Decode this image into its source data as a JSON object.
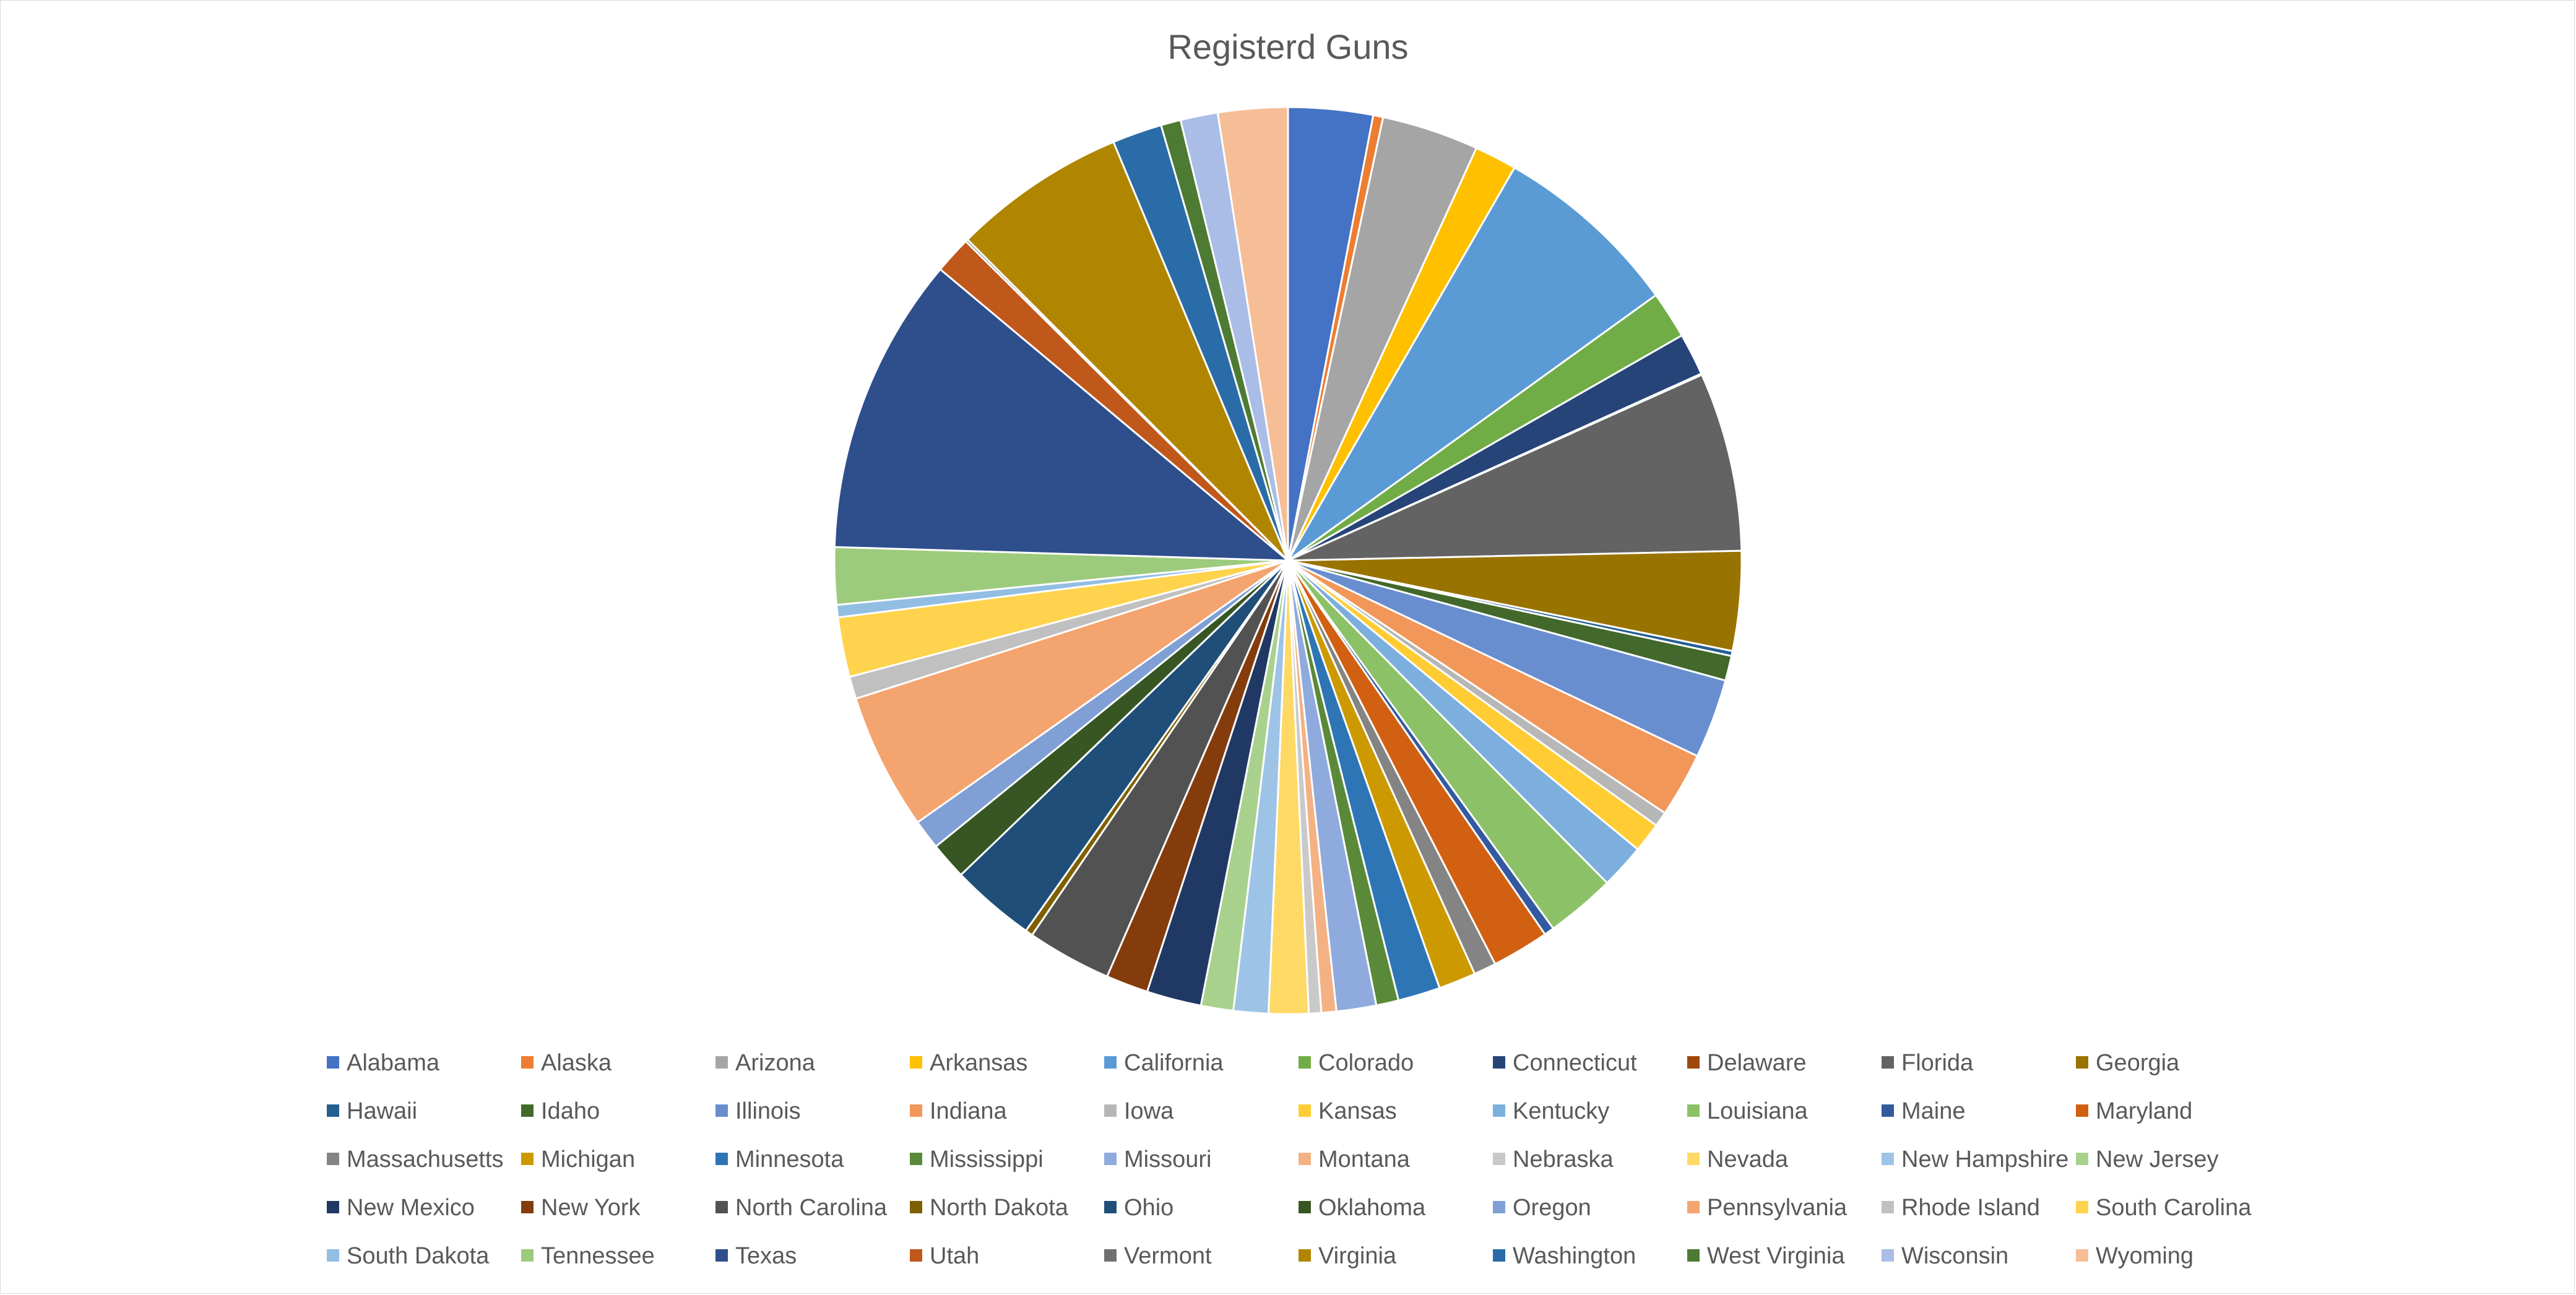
{
  "chart_data": {
    "type": "pie",
    "title": "Registerd Guns",
    "legend_position": "bottom",
    "slices": [
      {
        "name": "Alabama",
        "value": 3.4,
        "color": "#4472C4"
      },
      {
        "name": "Alaska",
        "value": 0.4,
        "color": "#ED7D31"
      },
      {
        "name": "Arizona",
        "value": 3.9,
        "color": "#A5A5A5"
      },
      {
        "name": "Arkansas",
        "value": 1.7,
        "color": "#FFC000"
      },
      {
        "name": "California",
        "value": 7.6,
        "color": "#5B9BD5"
      },
      {
        "name": "Colorado",
        "value": 1.9,
        "color": "#70AD47"
      },
      {
        "name": "Connecticut",
        "value": 1.7,
        "color": "#264478"
      },
      {
        "name": "Delaware",
        "value": 0.05,
        "color": "#9E480E"
      },
      {
        "name": "Florida",
        "value": 7.2,
        "color": "#636363"
      },
      {
        "name": "Georgia",
        "value": 4.0,
        "color": "#997300"
      },
      {
        "name": "Hawaii",
        "value": 0.2,
        "color": "#255E91"
      },
      {
        "name": "Idaho",
        "value": 1.0,
        "color": "#43682B"
      },
      {
        "name": "Illinois",
        "value": 3.2,
        "color": "#698ED0"
      },
      {
        "name": "Indiana",
        "value": 2.6,
        "color": "#F1975A"
      },
      {
        "name": "Iowa",
        "value": 0.6,
        "color": "#B7B7B7"
      },
      {
        "name": "Kansas",
        "value": 1.2,
        "color": "#FFCD33"
      },
      {
        "name": "Kentucky",
        "value": 1.8,
        "color": "#7CAFDD"
      },
      {
        "name": "Louisiana",
        "value": 2.8,
        "color": "#8CC168"
      },
      {
        "name": "Maine",
        "value": 0.4,
        "color": "#335AA1"
      },
      {
        "name": "Maryland",
        "value": 2.3,
        "color": "#D26012"
      },
      {
        "name": "Massachusetts",
        "value": 0.9,
        "color": "#848484"
      },
      {
        "name": "Michigan",
        "value": 1.5,
        "color": "#CC9A00"
      },
      {
        "name": "Minnesota",
        "value": 1.7,
        "color": "#2E75B6"
      },
      {
        "name": "Mississippi",
        "value": 0.9,
        "color": "#5A8A39"
      },
      {
        "name": "Missouri",
        "value": 1.6,
        "color": "#8FAADC"
      },
      {
        "name": "Montana",
        "value": 0.6,
        "color": "#F4B183"
      },
      {
        "name": "Nebraska",
        "value": 0.5,
        "color": "#C9C9C9"
      },
      {
        "name": "Nevada",
        "value": 1.6,
        "color": "#FFD966"
      },
      {
        "name": "New Hampshire",
        "value": 1.4,
        "color": "#9DC3E6"
      },
      {
        "name": "New Jersey",
        "value": 1.3,
        "color": "#A9D18E"
      },
      {
        "name": "New Mexico",
        "value": 2.2,
        "color": "#203864"
      },
      {
        "name": "New York",
        "value": 1.7,
        "color": "#843C0C"
      },
      {
        "name": "North Carolina",
        "value": 3.4,
        "color": "#525252"
      },
      {
        "name": "North Dakota",
        "value": 0.3,
        "color": "#7F6000"
      },
      {
        "name": "Ohio",
        "value": 3.4,
        "color": "#1F4E79"
      },
      {
        "name": "Oklahoma",
        "value": 1.5,
        "color": "#375623"
      },
      {
        "name": "Oregon",
        "value": 1.2,
        "color": "#7F9FD5"
      },
      {
        "name": "Pennsylvania",
        "value": 5.5,
        "color": "#F4A46F"
      },
      {
        "name": "Rhode Island",
        "value": 0.9,
        "color": "#C0C0C0"
      },
      {
        "name": "South Carolina",
        "value": 2.4,
        "color": "#FFD34D"
      },
      {
        "name": "South Dakota",
        "value": 0.5,
        "color": "#93BEE4"
      },
      {
        "name": "Tennessee",
        "value": 2.3,
        "color": "#9DCB7D"
      },
      {
        "name": "Texas",
        "value": 12.0,
        "color": "#2E4F8C"
      },
      {
        "name": "Utah",
        "value": 1.5,
        "color": "#C0581B"
      },
      {
        "name": "Vermont",
        "value": 0.1,
        "color": "#707070"
      },
      {
        "name": "Virginia",
        "value": 7.0,
        "color": "#B08600"
      },
      {
        "name": "Washington",
        "value": 2.0,
        "color": "#2A6CA8"
      },
      {
        "name": "West Virginia",
        "value": 0.8,
        "color": "#4E7B33"
      },
      {
        "name": "Wisconsin",
        "value": 1.5,
        "color": "#A9BDE6"
      },
      {
        "name": "Wyoming",
        "value": 2.8,
        "color": "#F6BE97"
      }
    ]
  }
}
